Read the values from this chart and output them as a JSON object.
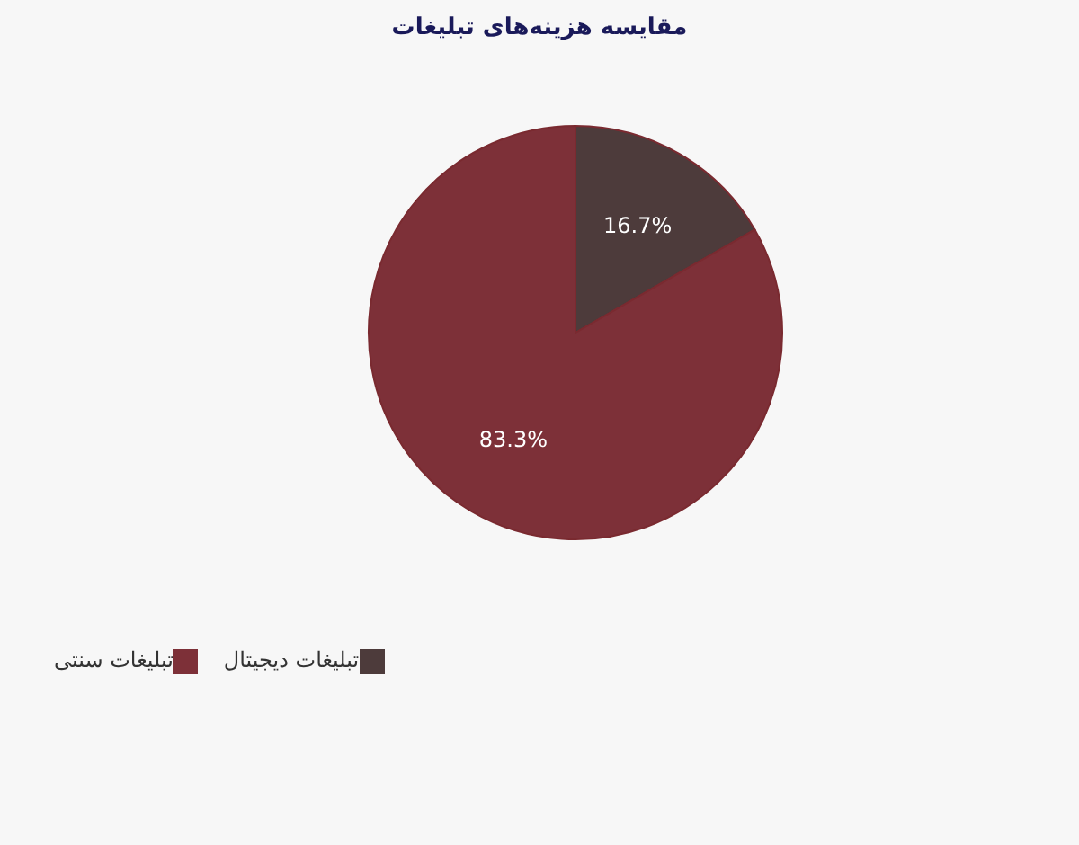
{
  "chart_data": {
    "type": "pie",
    "title": "مقایسه هزینه‌های تبلیغات",
    "categories": [
      "تبلیغات دیجیتال",
      "تبلیغات سنتی"
    ],
    "values": [
      16.7,
      83.3
    ],
    "colors": [
      "#4d3b3b",
      "#7d3038"
    ],
    "value_labels": [
      "16.7%",
      "83.3%"
    ],
    "legend": "bottom left"
  }
}
